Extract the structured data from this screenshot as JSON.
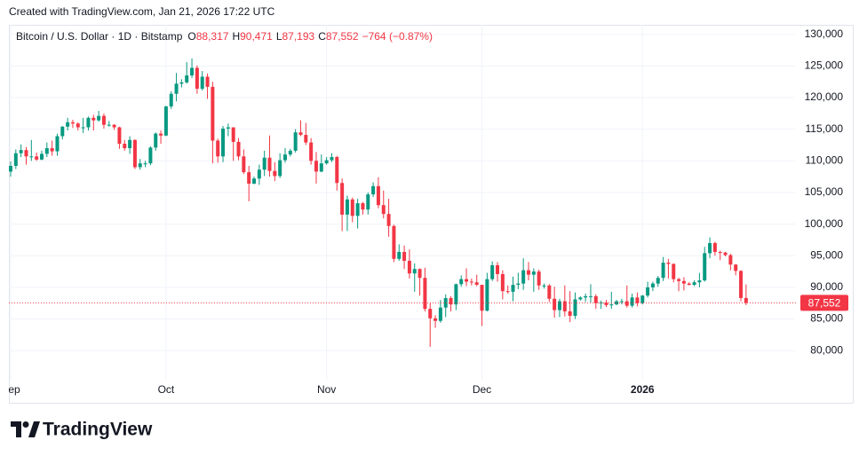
{
  "chart_data": {
    "type": "candlestick",
    "watermark": "Created with TradingView.com, Jan 21, 2026 17:22 UTC",
    "title": "Bitcoin / U.S. Dollar · 1D · Bitstamp",
    "ohlc_legend": [
      {
        "key": "O",
        "value": "88,317"
      },
      {
        "key": "H",
        "value": "90,471"
      },
      {
        "key": "L",
        "value": "87,193"
      },
      {
        "key": "C",
        "value": "87,552"
      }
    ],
    "change": "−764 (−0.87%)",
    "brand": "TradingView",
    "up_color": "#089981",
    "down_color": "#f23645",
    "grid": true,
    "ylim": [
      75400,
      131500
    ],
    "yticks": [
      {
        "value": 80000,
        "label": "80,000"
      },
      {
        "value": 85000,
        "label": "85,000"
      },
      {
        "value": 90000,
        "label": "90,000"
      },
      {
        "value": 95000,
        "label": "95,000"
      },
      {
        "value": 100000,
        "label": "100,000"
      },
      {
        "value": 105000,
        "label": "105,000"
      },
      {
        "value": 110000,
        "label": "110,000"
      },
      {
        "value": 115000,
        "label": "115,000"
      },
      {
        "value": 120000,
        "label": "120,000"
      },
      {
        "value": 125000,
        "label": "125,000"
      },
      {
        "value": 130000,
        "label": "130,000"
      }
    ],
    "last_price": 87552,
    "last_price_label": "87,552",
    "categories": [
      "Sep",
      null,
      null,
      null,
      null,
      null,
      null,
      null,
      null,
      null,
      null,
      null,
      null,
      null,
      null,
      null,
      null,
      null,
      null,
      null,
      null,
      null,
      null,
      null,
      null,
      null,
      null,
      null,
      null,
      null,
      "Oct",
      null,
      null,
      null,
      null,
      null,
      null,
      null,
      null,
      null,
      null,
      null,
      null,
      null,
      null,
      null,
      null,
      null,
      null,
      null,
      null,
      null,
      null,
      null,
      null,
      null,
      null,
      null,
      null,
      null,
      null,
      "Nov",
      null,
      null,
      null,
      null,
      null,
      null,
      null,
      null,
      null,
      null,
      null,
      null,
      null,
      null,
      null,
      null,
      null,
      null,
      null,
      null,
      null,
      null,
      null,
      null,
      null,
      null,
      null,
      null,
      null,
      "Dec",
      null,
      null,
      null,
      null,
      null,
      null,
      null,
      null,
      null,
      null,
      null,
      null,
      null,
      null,
      null,
      null,
      null,
      null,
      null,
      null,
      null,
      null,
      null,
      null,
      null,
      null,
      null,
      null,
      null,
      null,
      "2026",
      null,
      null,
      null,
      null,
      null,
      null,
      null,
      null,
      null,
      null,
      null,
      null,
      null,
      null,
      null,
      null,
      null,
      null,
      null,
      null
    ],
    "open": [
      108300,
      109200,
      111200,
      111700,
      110700,
      110700,
      110200,
      111100,
      112000,
      111500,
      113900,
      115400,
      116100,
      115900,
      115300,
      115300,
      116800,
      116400,
      117100,
      115700,
      115700,
      115300,
      112700,
      112000,
      113300,
      109000,
      109600,
      109600,
      112100,
      114300,
      114000,
      118600,
      120600,
      122200,
      122400,
      123500,
      124700,
      121400,
      123300,
      121700,
      113200,
      110700,
      115100,
      115300,
      113000,
      110700,
      108200,
      106400,
      107200,
      108600,
      110500,
      108400,
      107600,
      110100,
      111000,
      111600,
      114500,
      114100,
      112900,
      110000,
      108300,
      109600,
      110100,
      110600,
      106500,
      101500,
      103900,
      101300,
      103300,
      102300,
      104700,
      106000,
      103000,
      101600,
      99700,
      94500,
      95600,
      94200,
      92200,
      92900,
      91500,
      86600,
      85100,
      84700,
      86800,
      88300,
      87300,
      90500,
      91300,
      90900,
      90800,
      90400,
      86300,
      91300,
      93500,
      92100,
      89400,
      89300,
      90400,
      90600,
      92700,
      92000,
      92500,
      90300,
      90300,
      88200,
      86400,
      87800,
      86200,
      85500,
      88100,
      88400,
      88600,
      88600,
      87500,
      87600,
      87200,
      87300,
      87800,
      87800,
      87100,
      88400,
      87500,
      88700,
      90000,
      90600,
      91500,
      93900,
      93700,
      91300,
      91000,
      90600,
      90400,
      90800,
      91100,
      95400,
      97000,
      95600,
      95500,
      95100,
      93600,
      92600,
      88317
    ],
    "high": [
      109900,
      111800,
      112600,
      112200,
      113300,
      111300,
      111600,
      112900,
      113200,
      114300,
      115500,
      116800,
      116500,
      116100,
      116800,
      117000,
      117300,
      117900,
      117500,
      116300,
      115800,
      115400,
      113300,
      113900,
      113400,
      110300,
      110000,
      112300,
      114500,
      114800,
      118700,
      121000,
      123900,
      122900,
      125600,
      126200,
      125100,
      124200,
      123800,
      122500,
      113500,
      115500,
      115900,
      115200,
      113600,
      111800,
      109200,
      107500,
      109400,
      111600,
      114000,
      109800,
      111200,
      112000,
      111900,
      115000,
      116400,
      116000,
      113600,
      111400,
      111000,
      110600,
      111200,
      110800,
      107200,
      104500,
      104200,
      104000,
      103500,
      105000,
      106600,
      107400,
      105300,
      104000,
      99900,
      96800,
      96600,
      96000,
      93800,
      93000,
      93100,
      87500,
      85600,
      88000,
      88900,
      88600,
      90600,
      91900,
      93000,
      91400,
      92000,
      90400,
      92300,
      94100,
      94000,
      92700,
      90300,
      91700,
      92300,
      94600,
      94000,
      93000,
      92800,
      90600,
      90500,
      90100,
      88200,
      90300,
      89400,
      89200,
      88600,
      89000,
      90500,
      88900,
      87900,
      88000,
      89300,
      88000,
      88200,
      90300,
      89000,
      89200,
      88800,
      90900,
      90900,
      91800,
      94800,
      94500,
      93800,
      91500,
      91600,
      90800,
      91100,
      92300,
      96400,
      97900,
      97200,
      95800,
      95600,
      95300,
      93700,
      92700,
      90471
    ],
    "low": [
      107500,
      108700,
      110600,
      109400,
      110000,
      110000,
      110100,
      110600,
      110800,
      110800,
      113400,
      114800,
      115200,
      114800,
      114400,
      114800,
      114800,
      116200,
      115100,
      115400,
      114900,
      111900,
      111600,
      111100,
      108700,
      108600,
      109000,
      109300,
      111600,
      112700,
      113900,
      118200,
      119400,
      121600,
      122200,
      123100,
      120600,
      121100,
      119800,
      109600,
      109700,
      109800,
      113900,
      110000,
      110100,
      107900,
      103600,
      106300,
      106200,
      107600,
      107500,
      106800,
      107300,
      109700,
      110700,
      111300,
      113900,
      112500,
      109400,
      106400,
      108200,
      109400,
      109800,
      105300,
      98900,
      98900,
      100300,
      99300,
      101500,
      101500,
      104300,
      102500,
      100900,
      98000,
      94000,
      94200,
      92900,
      91400,
      89300,
      88700,
      86200,
      80600,
      83600,
      84400,
      85300,
      86200,
      86400,
      90100,
      90200,
      90300,
      90200,
      83900,
      86200,
      91000,
      90900,
      88100,
      89000,
      87800,
      89700,
      89600,
      91100,
      89300,
      89600,
      89800,
      87700,
      85200,
      85300,
      85400,
      84500,
      85000,
      87900,
      87700,
      87600,
      86600,
      86600,
      86900,
      86600,
      87200,
      87300,
      86800,
      86800,
      87000,
      87300,
      88400,
      89400,
      90100,
      91000,
      91400,
      90800,
      89400,
      89500,
      90300,
      90200,
      90000,
      90900,
      94600,
      95000,
      94300,
      94900,
      92700,
      91900,
      87800,
      87193
    ],
    "close": [
      109200,
      111200,
      111700,
      110700,
      110700,
      110200,
      111100,
      112000,
      111500,
      113900,
      115400,
      116100,
      115900,
      115300,
      115300,
      116800,
      116400,
      117100,
      115700,
      115700,
      115300,
      112700,
      112000,
      113300,
      109000,
      109600,
      109600,
      112100,
      114300,
      114000,
      118600,
      120600,
      122200,
      122400,
      123500,
      124700,
      121400,
      123300,
      121700,
      113200,
      110700,
      115100,
      115300,
      113000,
      110700,
      108200,
      106400,
      107200,
      108600,
      110500,
      108400,
      107600,
      110100,
      111000,
      111600,
      114500,
      114100,
      112900,
      110000,
      108300,
      109600,
      110100,
      110600,
      106500,
      101500,
      103900,
      101300,
      103300,
      102300,
      104700,
      106000,
      103000,
      101600,
      99700,
      94500,
      95600,
      94200,
      92200,
      92900,
      91500,
      86600,
      85100,
      84700,
      86800,
      88300,
      87300,
      90500,
      91300,
      90900,
      90800,
      90400,
      86300,
      91300,
      93500,
      92100,
      89400,
      89300,
      90400,
      90600,
      92700,
      92000,
      92500,
      90300,
      90300,
      88200,
      86400,
      87800,
      86200,
      85500,
      88100,
      88400,
      88600,
      88600,
      87500,
      87600,
      87200,
      87300,
      87800,
      87800,
      87100,
      88400,
      87500,
      88700,
      90000,
      90600,
      91500,
      93900,
      93700,
      91300,
      91000,
      90600,
      90400,
      90800,
      91100,
      95400,
      97000,
      95600,
      95500,
      95100,
      93600,
      92600,
      88317,
      87552
    ]
  }
}
